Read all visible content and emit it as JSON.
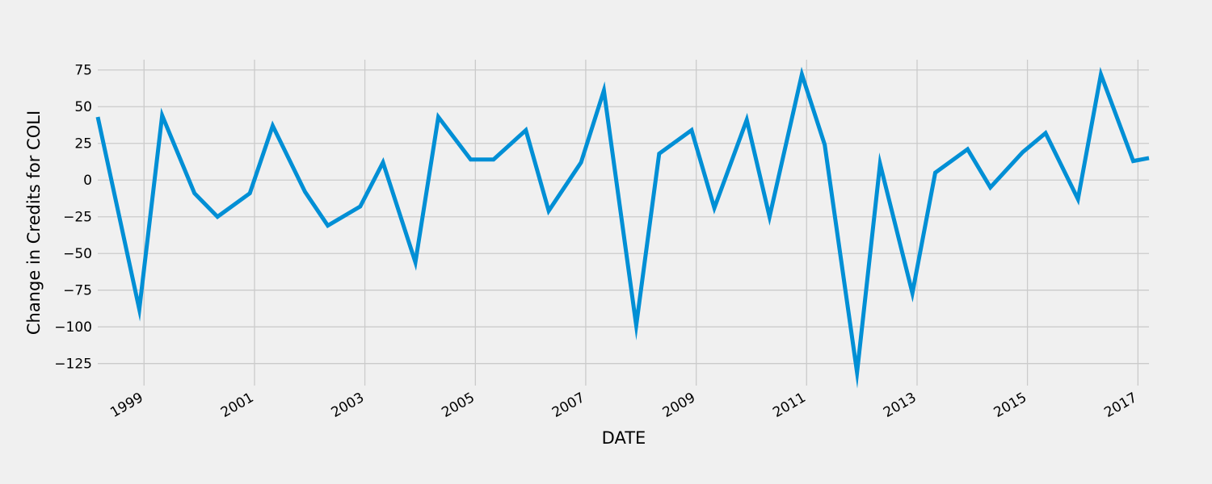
{
  "chart_data": {
    "type": "line",
    "title": "",
    "xlabel": "DATE",
    "ylabel": "Change in Credits for COLI",
    "x_range": [
      "1998-03-01",
      "2017-03-15"
    ],
    "ylim": [
      -140,
      82
    ],
    "y_ticks": [
      75,
      50,
      25,
      0,
      -25,
      -50,
      -75,
      -100,
      -125
    ],
    "y_tick_labels": [
      "75",
      "50",
      "25",
      "0",
      "−25",
      "−50",
      "−75",
      "−100",
      "−125"
    ],
    "x_ticks": [
      "1999-01-01",
      "2001-01-01",
      "2003-01-01",
      "2005-01-01",
      "2007-01-01",
      "2009-01-01",
      "2011-01-01",
      "2013-01-01",
      "2015-01-01",
      "2017-01-01"
    ],
    "x_tick_labels": [
      "1999",
      "2001",
      "2003",
      "2005",
      "2007",
      "2009",
      "2011",
      "2013",
      "2015",
      "2017"
    ],
    "grid": true,
    "line_color": "#008fd5",
    "series": [
      {
        "x": [
          "1998-03-01",
          "1998-12-01",
          "1999-05-01",
          "1999-12-01",
          "2000-05-01",
          "2000-12-01",
          "2001-05-01",
          "2001-12-01",
          "2002-05-01",
          "2002-12-01",
          "2003-05-01",
          "2003-12-01",
          "2004-05-01",
          "2004-12-01",
          "2005-05-01",
          "2005-12-01",
          "2006-05-01",
          "2006-12-01",
          "2007-05-01",
          "2007-12-01",
          "2008-05-01",
          "2008-12-01",
          "2009-05-01",
          "2009-12-01",
          "2010-05-01",
          "2010-12-01",
          "2011-05-01",
          "2011-12-01",
          "2012-05-01",
          "2012-12-01",
          "2013-05-01",
          "2013-12-01",
          "2014-05-01",
          "2014-12-01",
          "2015-05-01",
          "2015-12-01",
          "2016-05-01",
          "2016-12-01",
          "2017-03-15"
        ],
        "values": [
          43,
          -88,
          44,
          -9,
          -25,
          -9,
          37,
          -8,
          -31,
          -18,
          12,
          -56,
          43,
          14,
          14,
          34,
          -21,
          12,
          61,
          -99,
          18,
          34,
          -19,
          41,
          -25,
          72,
          24,
          -131,
          11,
          -77,
          5,
          21,
          -5,
          19,
          32,
          -13,
          72,
          13,
          15
        ]
      }
    ]
  }
}
